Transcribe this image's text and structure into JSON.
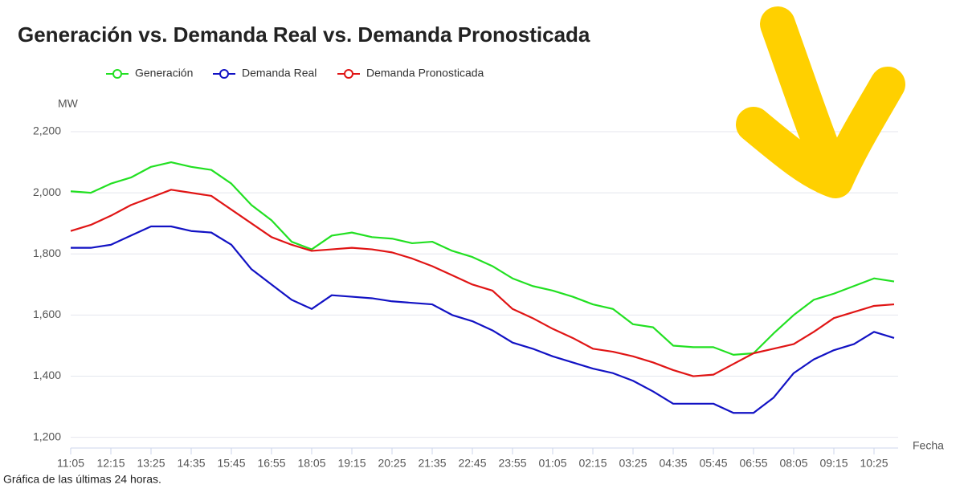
{
  "chart_data": {
    "type": "line",
    "title": "Generación vs. Demanda Real vs. Demanda Pronosticada",
    "y_label": "MW",
    "x_label": "Fecha",
    "footnote": "Gráfica de las últimas 24 horas.",
    "categories": [
      "11:05",
      null,
      "12:15",
      null,
      "13:25",
      null,
      "14:35",
      null,
      "15:45",
      null,
      "16:55",
      null,
      "18:05",
      null,
      "19:15",
      null,
      "20:25",
      null,
      "21:35",
      null,
      "22:45",
      null,
      "23:55",
      null,
      "01:05",
      null,
      "02:15",
      null,
      "03:25",
      null,
      "04:35",
      null,
      "05:45",
      null,
      "06:55",
      null,
      "08:05",
      null,
      "09:15",
      null,
      "10:25",
      null
    ],
    "series": [
      {
        "name": "Generación",
        "color": "#22e022",
        "values": [
          2005,
          2000,
          2030,
          2050,
          2085,
          2100,
          2085,
          2075,
          2030,
          1960,
          1910,
          1840,
          1815,
          1860,
          1870,
          1855,
          1850,
          1835,
          1840,
          1810,
          1790,
          1760,
          1720,
          1695,
          1680,
          1660,
          1635,
          1620,
          1570,
          1560,
          1500,
          1495,
          1495,
          1470,
          1475,
          1540,
          1600,
          1650,
          1670,
          1695,
          1720,
          1710
        ]
      },
      {
        "name": "Demanda Real",
        "color": "#1212c4",
        "values": [
          1820,
          1820,
          1830,
          1860,
          1890,
          1890,
          1875,
          1870,
          1830,
          1750,
          1700,
          1650,
          1620,
          1665,
          1660,
          1655,
          1645,
          1640,
          1635,
          1600,
          1580,
          1550,
          1510,
          1490,
          1465,
          1445,
          1425,
          1410,
          1385,
          1350,
          1310,
          1310,
          1310,
          1280,
          1280,
          1330,
          1410,
          1455,
          1485,
          1505,
          1545,
          1525
        ]
      },
      {
        "name": "Demanda Pronosticada",
        "color": "#e01515",
        "values": [
          1875,
          1895,
          1925,
          1960,
          1985,
          2010,
          2000,
          1990,
          1945,
          1900,
          1855,
          1830,
          1810,
          1815,
          1820,
          1815,
          1805,
          1785,
          1760,
          1730,
          1700,
          1680,
          1620,
          1590,
          1555,
          1525,
          1490,
          1480,
          1465,
          1445,
          1420,
          1400,
          1405,
          1440,
          1475,
          1490,
          1505,
          1545,
          1590,
          1610,
          1630,
          1635
        ]
      }
    ],
    "ylim": [
      1165,
      2200
    ],
    "yticks": [
      {
        "value": 1200,
        "label": "1,200"
      },
      {
        "value": 1400,
        "label": "1,400"
      },
      {
        "value": 1600,
        "label": "1,600"
      },
      {
        "value": 1800,
        "label": "1,800"
      },
      {
        "value": 2000,
        "label": "2,000"
      },
      {
        "value": 2200,
        "label": "2,200"
      }
    ],
    "grid": true
  }
}
